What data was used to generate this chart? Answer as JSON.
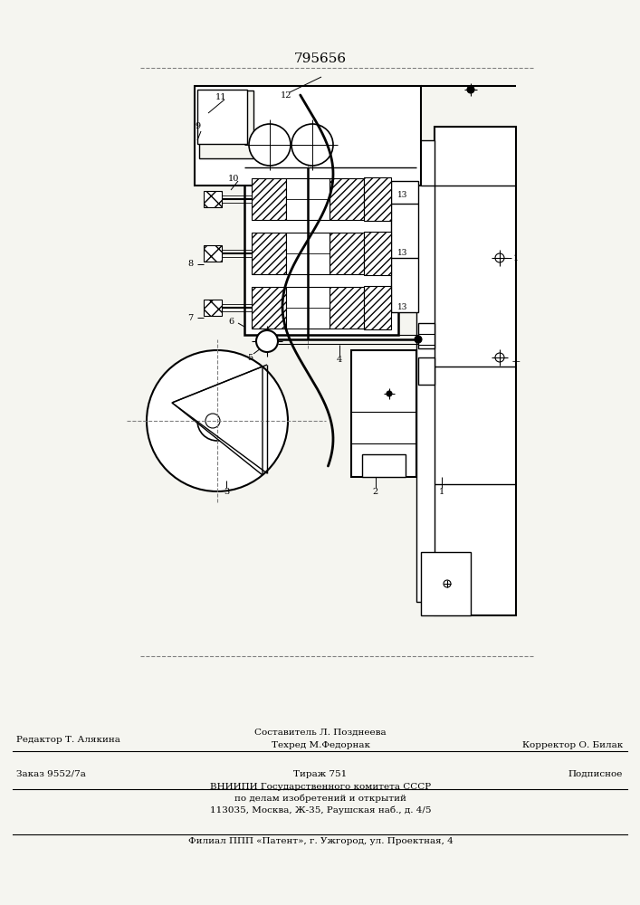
{
  "title": "795656",
  "bg_color": "#f5f5f0",
  "line_color": "#000000",
  "footer": {
    "editor": "Редактор Т. Алякина",
    "composer": "Составитель Л. Позднеева",
    "techred": "Техред М.Федорнак",
    "corrector": "Корректор О. Билак",
    "order": "Заказ 9552/7а",
    "tirazh": "Тираж 751",
    "podp": "Подписное",
    "vnipi1": "ВНИИПИ Государственного комитета СССР",
    "vnipi2": "по делам изобретений и открытий",
    "vnipi3": "113035, Москва, Ж-35, Раушская наб., д. 4/5",
    "filial": "Филиал ППП «Патент», г. Ужгород, ул. Проектная, 4"
  }
}
